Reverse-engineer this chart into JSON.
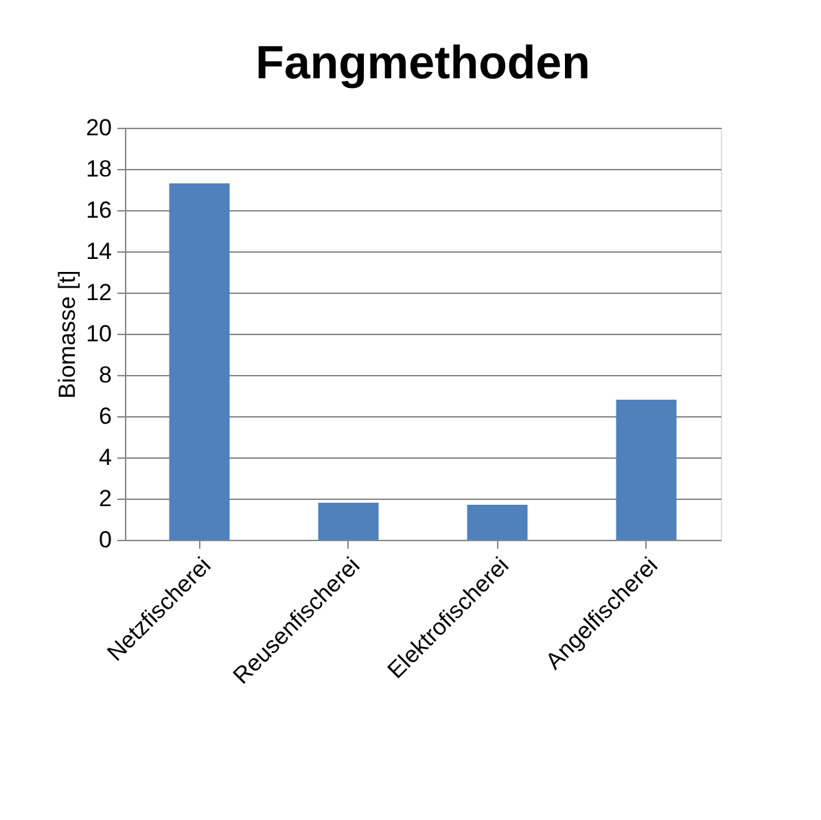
{
  "chart_data": {
    "type": "bar",
    "title": "Fangmethoden",
    "ylabel": "Biomasse [t]",
    "categories": [
      "Netzfischerei",
      "Reusenfischerei",
      "Elektrofischerei",
      "Angelfischerei"
    ],
    "values": [
      17.3,
      1.8,
      1.7,
      6.8
    ],
    "color": "#4f81bd",
    "ylim": [
      0,
      20
    ],
    "yticks": [
      0,
      2,
      4,
      6,
      8,
      10,
      12,
      14,
      16,
      18,
      20
    ],
    "grid": "y"
  }
}
